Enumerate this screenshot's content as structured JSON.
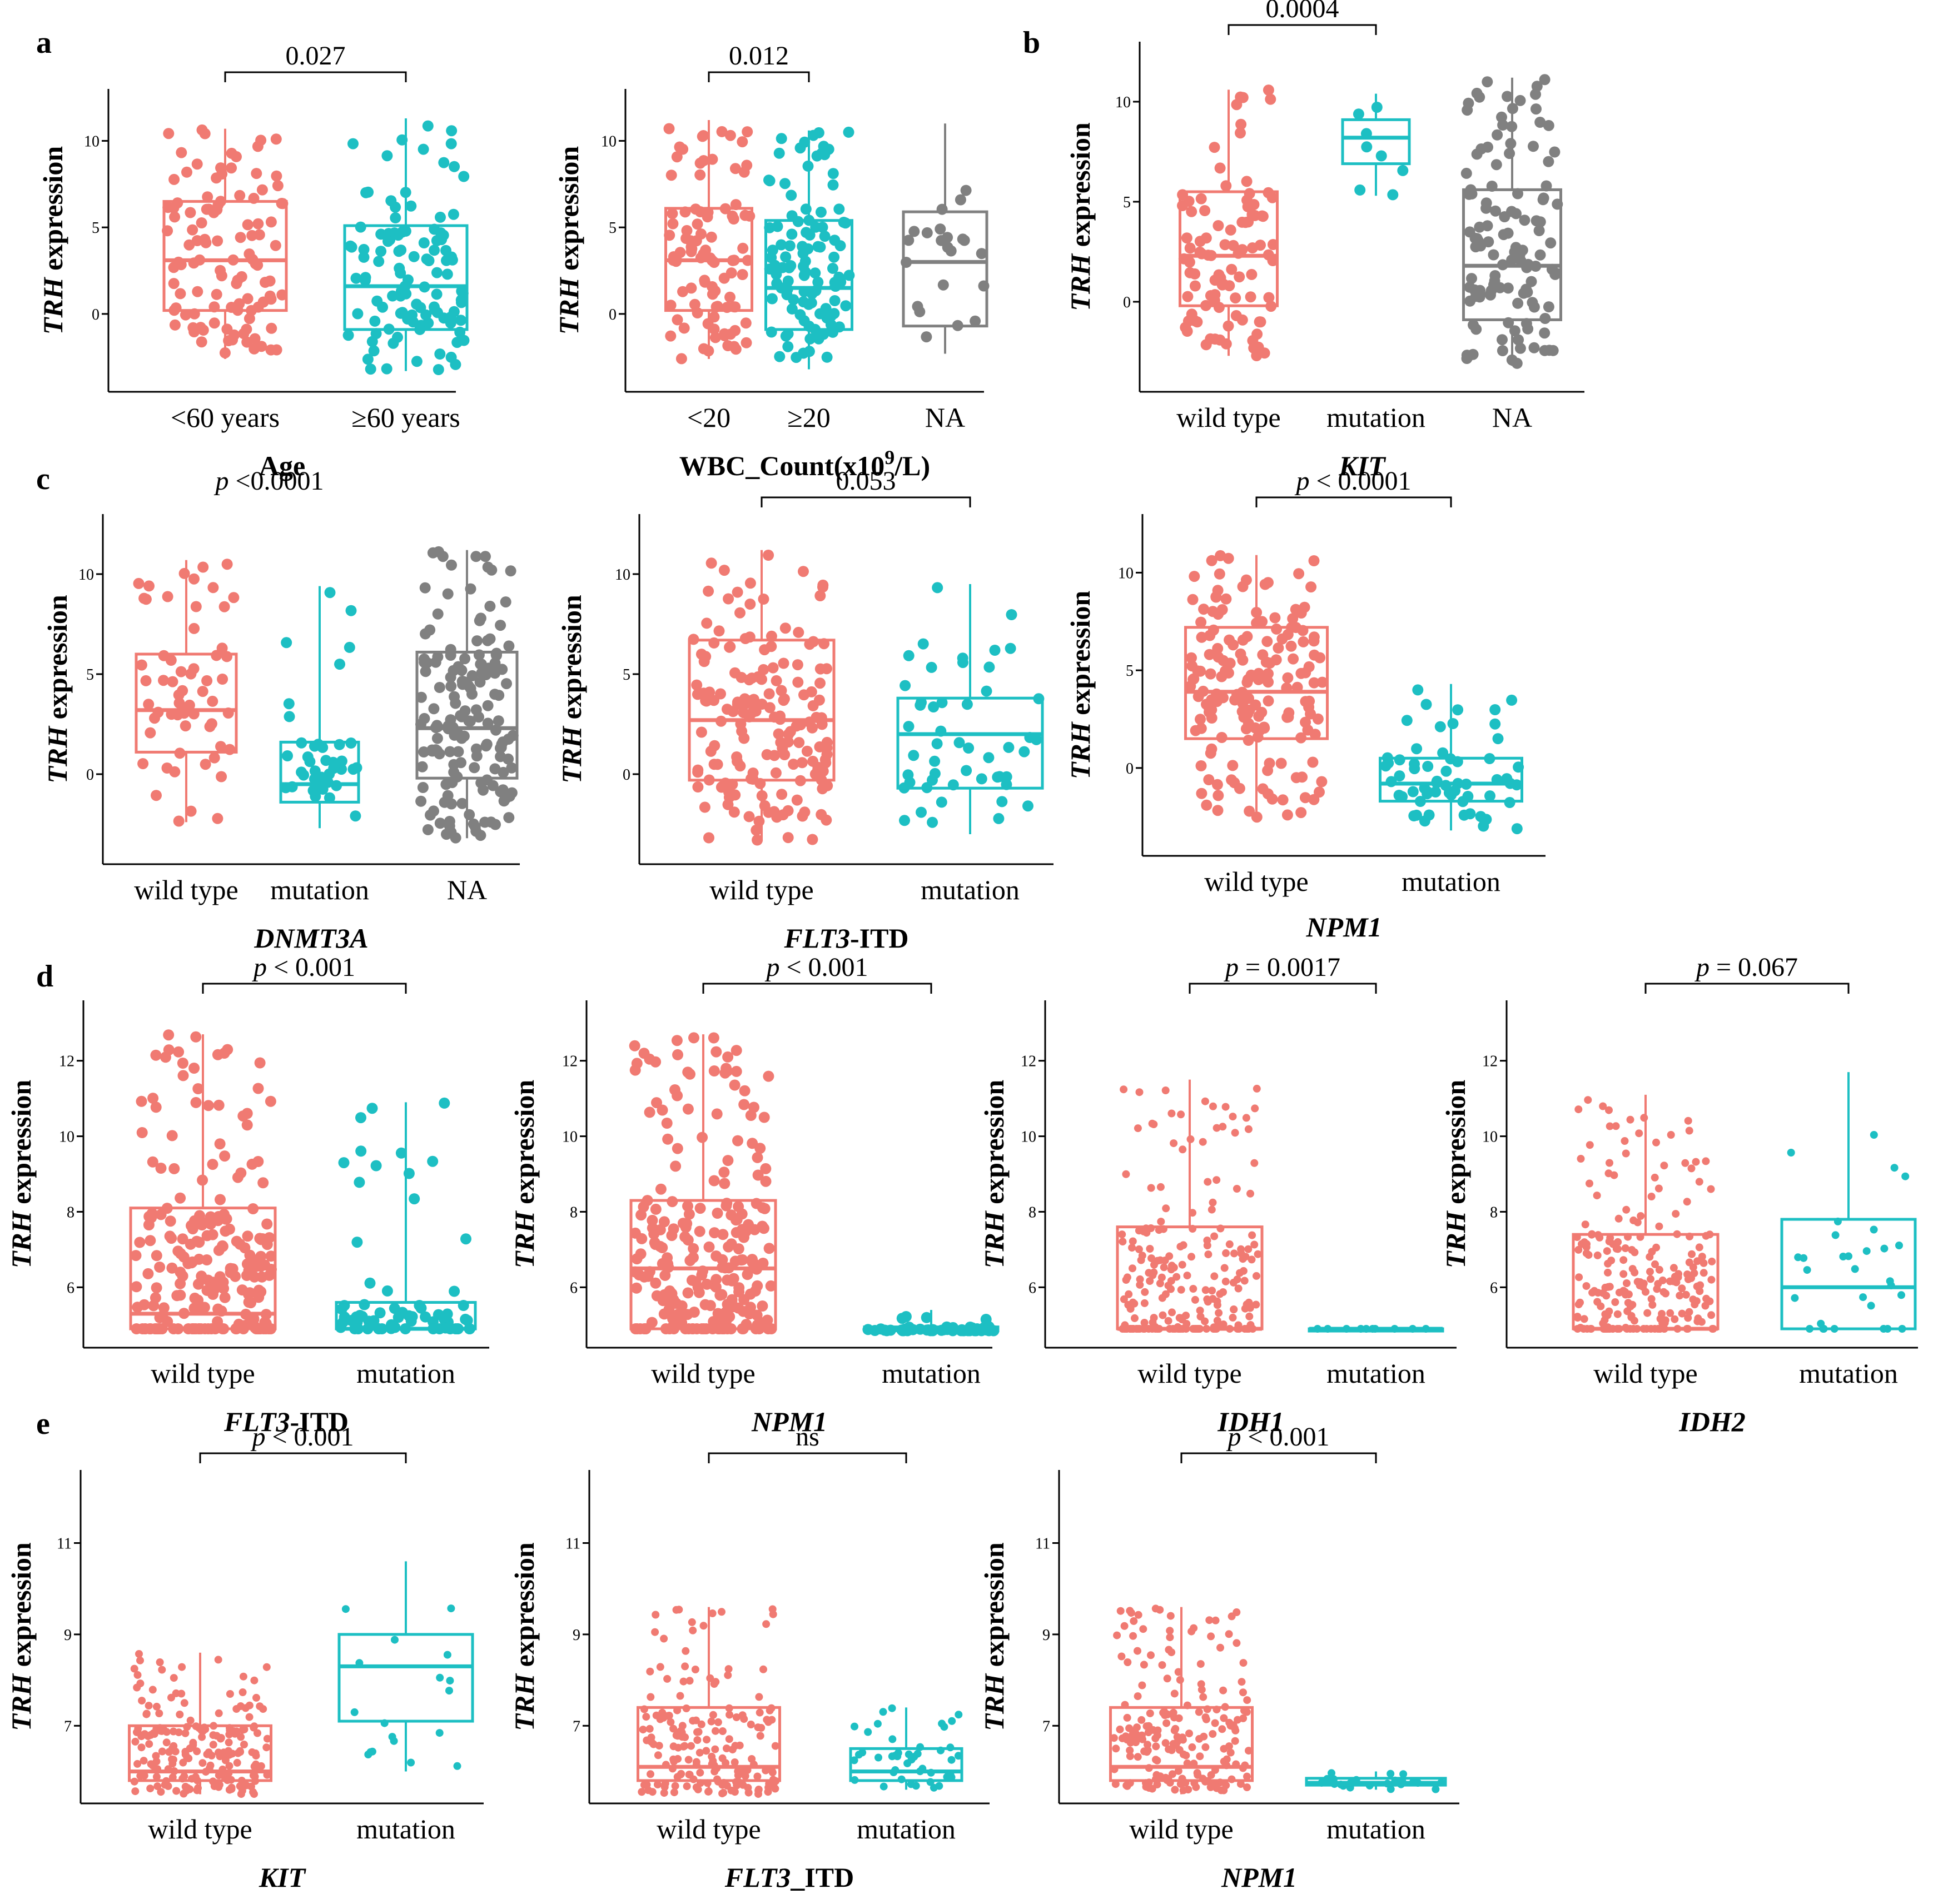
{
  "figure_letters": [
    "a",
    "b",
    "c",
    "d",
    "e"
  ],
  "colors": {
    "wild": "#f07a72",
    "mut": "#1dbfc3",
    "na": "#808080",
    "axis": "#000000"
  },
  "chart_data": [
    {
      "id": "a1",
      "type": "box_jitter",
      "letter": "a",
      "ylabel_gene": "TRH",
      "ylabel_rest": " expression",
      "xlabel": [
        {
          "t": "Age",
          "b": true,
          "i": false
        }
      ],
      "categories": [
        "<60 years",
        "≥60 years"
      ],
      "colors": [
        "wild",
        "mut"
      ],
      "boxes": [
        {
          "q1": 0.2,
          "med": 3.1,
          "q3": 6.5,
          "wmin": -2.6,
          "wmax": 10.7
        },
        {
          "q1": -0.9,
          "med": 1.6,
          "q3": 5.1,
          "wmin": -3.3,
          "wmax": 11.3
        }
      ],
      "n": [
        110,
        110
      ],
      "dotr": 10,
      "ylim": [
        -4.5,
        13
      ],
      "yticks": [
        0,
        5,
        10
      ],
      "sig": {
        "text": "0.027",
        "p": false,
        "pair": [
          0,
          1
        ]
      }
    },
    {
      "id": "a2",
      "type": "box_jitter",
      "letter": "",
      "ylabel_gene": "TRH",
      "ylabel_rest": " expression",
      "xlabel": [
        {
          "t": "WBC_Count(x10",
          "b": true,
          "i": false
        },
        {
          "t": "9",
          "b": true,
          "i": false,
          "sup": true
        },
        {
          "t": "/L)",
          "b": true,
          "i": false
        }
      ],
      "categories": [
        "<20",
        "≥20",
        "NA"
      ],
      "colors": [
        "wild",
        "mut",
        "na"
      ],
      "boxes": [
        {
          "q1": 0.2,
          "med": 3.1,
          "q3": 6.1,
          "wmin": -2.6,
          "wmax": 11.2
        },
        {
          "q1": -0.9,
          "med": 1.5,
          "q3": 5.4,
          "wmin": -3.2,
          "wmax": 10.6
        },
        {
          "q1": -0.7,
          "med": 3.0,
          "q3": 5.9,
          "wmin": -2.3,
          "wmax": 11.0
        }
      ],
      "n": [
        95,
        110,
        22
      ],
      "dotr": 10,
      "ylim": [
        -4.5,
        13
      ],
      "yticks": [
        0,
        5,
        10
      ],
      "sig": {
        "text": "0.012",
        "p": false,
        "pair": [
          0,
          1
        ]
      }
    },
    {
      "id": "b1",
      "type": "box_jitter",
      "letter": "b",
      "ylabel_gene": "TRH",
      "ylabel_rest": " expression",
      "xlabel": [
        {
          "t": "KIT",
          "b": true,
          "i": true
        }
      ],
      "categories": [
        "wild type",
        "mutation",
        "NA"
      ],
      "colors": [
        "wild",
        "mut",
        "na"
      ],
      "boxes": [
        {
          "q1": -0.2,
          "med": 2.3,
          "q3": 5.5,
          "wmin": -2.7,
          "wmax": 10.6
        },
        {
          "q1": 6.9,
          "med": 8.2,
          "q3": 9.1,
          "wmin": 5.3,
          "wmax": 10.4
        },
        {
          "q1": -0.9,
          "med": 1.8,
          "q3": 5.6,
          "wmin": -3.2,
          "wmax": 11.2
        }
      ],
      "n": [
        95,
        8,
        120
      ],
      "dotr": 10,
      "ylim": [
        -4.5,
        13
      ],
      "yticks": [
        0,
        5,
        10
      ],
      "sig": {
        "text": "0.0004",
        "p": false,
        "pair": [
          0,
          1
        ]
      }
    },
    {
      "id": "c1",
      "type": "box_jitter",
      "letter": "c",
      "ylabel_gene": "TRH",
      "ylabel_rest": " expression",
      "xlabel": [
        {
          "t": "DNMT3A",
          "b": true,
          "i": true
        }
      ],
      "categories": [
        "wild type",
        "mutation",
        "NA"
      ],
      "colors": [
        "wild",
        "mut",
        "na"
      ],
      "boxes": [
        {
          "q1": 1.1,
          "med": 3.2,
          "q3": 6.0,
          "wmin": -2.4,
          "wmax": 10.7
        },
        {
          "q1": -1.4,
          "med": -0.5,
          "q3": 1.6,
          "wmin": -2.7,
          "wmax": 9.4
        },
        {
          "q1": -0.2,
          "med": 2.3,
          "q3": 6.1,
          "wmin": -3.2,
          "wmax": 11.2
        }
      ],
      "n": [
        60,
        40,
        160
      ],
      "dotr": 10,
      "ylim": [
        -4.5,
        13
      ],
      "yticks": [
        0,
        5,
        10
      ],
      "sig": {
        "text": "<0.0001",
        "p": true,
        "pair": null
      }
    },
    {
      "id": "c2",
      "type": "box_jitter",
      "letter": "",
      "ylabel_gene": "TRH",
      "ylabel_rest": " expression",
      "xlabel": [
        {
          "t": "FLT3",
          "b": true,
          "i": true
        },
        {
          "t": "-ITD",
          "b": true,
          "i": false
        }
      ],
      "categories": [
        "wild type",
        "mutation"
      ],
      "colors": [
        "wild",
        "mut"
      ],
      "boxes": [
        {
          "q1": -0.3,
          "med": 2.7,
          "q3": 6.7,
          "wmin": -3.3,
          "wmax": 11.2
        },
        {
          "q1": -0.7,
          "med": 2.0,
          "q3": 3.8,
          "wmin": -3.0,
          "wmax": 9.5
        }
      ],
      "n": [
        170,
        50
      ],
      "dotr": 10,
      "ylim": [
        -4.5,
        13
      ],
      "yticks": [
        0,
        5,
        10
      ],
      "sig": {
        "text": "0.053",
        "p": false,
        "pair": [
          0,
          1
        ]
      }
    },
    {
      "id": "c3",
      "type": "box_jitter",
      "letter": "",
      "ylabel_gene": "TRH",
      "ylabel_rest": " expression",
      "xlabel": [
        {
          "t": "NPM1",
          "b": true,
          "i": true
        }
      ],
      "categories": [
        "wild type",
        "mutation"
      ],
      "colors": [
        "wild",
        "mut"
      ],
      "boxes": [
        {
          "q1": 1.5,
          "med": 3.9,
          "q3": 7.2,
          "wmin": -2.6,
          "wmax": 10.9
        },
        {
          "q1": -1.7,
          "med": -0.8,
          "q3": 0.5,
          "wmin": -3.2,
          "wmax": 4.3
        }
      ],
      "n": [
        175,
        60
      ],
      "dotr": 10,
      "ylim": [
        -4.5,
        13
      ],
      "yticks": [
        0,
        5,
        10
      ],
      "sig": {
        "text": "< 0.0001",
        "p": true,
        "pair": [
          0,
          1
        ]
      }
    },
    {
      "id": "d1",
      "type": "box_jitter",
      "letter": "d",
      "ylabel_gene": "TRH",
      "ylabel_rest": " expression",
      "xlabel": [
        {
          "t": "FLT3",
          "b": true,
          "i": true
        },
        {
          "t": "-ITD",
          "b": true,
          "i": false
        }
      ],
      "categories": [
        "wild type",
        "mutation"
      ],
      "colors": [
        "wild",
        "mut"
      ],
      "boxes": [
        {
          "q1": 4.9,
          "med": 5.3,
          "q3": 8.1,
          "wmin": 4.9,
          "wmax": 12.7
        },
        {
          "q1": 4.9,
          "med": 4.9,
          "q3": 5.6,
          "wmin": 4.9,
          "wmax": 10.9
        }
      ],
      "n": [
        220,
        70
      ],
      "dotr": 10,
      "ylim": [
        4.4,
        13.6
      ],
      "yticks": [
        6,
        8,
        10,
        12
      ],
      "sig": {
        "text": "< 0.001",
        "p": true,
        "pair": [
          0,
          1
        ]
      }
    },
    {
      "id": "d2",
      "type": "box_jitter",
      "letter": "",
      "ylabel_gene": "TRH",
      "ylabel_rest": " expression",
      "xlabel": [
        {
          "t": "NPM1",
          "b": true,
          "i": true
        }
      ],
      "categories": [
        "wild type",
        "mutation"
      ],
      "colors": [
        "wild",
        "mut"
      ],
      "boxes": [
        {
          "q1": 4.9,
          "med": 6.5,
          "q3": 8.3,
          "wmin": 4.9,
          "wmax": 12.7
        },
        {
          "q1": 4.85,
          "med": 4.9,
          "q3": 4.95,
          "wmin": 4.85,
          "wmax": 5.4
        }
      ],
      "n": [
        230,
        50
      ],
      "dotr": 10,
      "ylim": [
        4.4,
        13.6
      ],
      "yticks": [
        6,
        8,
        10,
        12
      ],
      "sig": {
        "text": "< 0.001",
        "p": true,
        "pair": [
          0,
          1
        ]
      }
    },
    {
      "id": "d3",
      "type": "box_jitter",
      "letter": "",
      "ylabel_gene": "TRH",
      "ylabel_rest": " expression",
      "xlabel": [
        {
          "t": "IDH1",
          "b": true,
          "i": true
        }
      ],
      "categories": [
        "wild type",
        "mutation"
      ],
      "colors": [
        "wild",
        "mut"
      ],
      "boxes": [
        {
          "q1": 4.9,
          "med": 4.9,
          "q3": 7.6,
          "wmin": 4.9,
          "wmax": 11.5
        },
        {
          "q1": 4.9,
          "med": 4.9,
          "q3": 4.9,
          "wmin": 4.9,
          "wmax": 4.9
        }
      ],
      "n": [
        220,
        10
      ],
      "dotr": 7,
      "ylim": [
        4.4,
        13.6
      ],
      "yticks": [
        6,
        8,
        10,
        12
      ],
      "sig": {
        "text": "= 0.0017",
        "p": true,
        "pair": [
          0,
          1
        ]
      }
    },
    {
      "id": "d4",
      "type": "box_jitter",
      "letter": "",
      "ylabel_gene": "TRH",
      "ylabel_rest": " expression",
      "xlabel": [
        {
          "t": "IDH2",
          "b": true,
          "i": true
        }
      ],
      "categories": [
        "wild type",
        "mutation"
      ],
      "colors": [
        "wild",
        "mut"
      ],
      "boxes": [
        {
          "q1": 4.9,
          "med": 4.9,
          "q3": 7.4,
          "wmin": 4.9,
          "wmax": 11.1
        },
        {
          "q1": 4.9,
          "med": 6.0,
          "q3": 7.8,
          "wmin": 4.9,
          "wmax": 11.7
        }
      ],
      "n": [
        220,
        30
      ],
      "dotr": 7,
      "ylim": [
        4.4,
        13.6
      ],
      "yticks": [
        6,
        8,
        10,
        12
      ],
      "sig": {
        "text": "= 0.067",
        "p": true,
        "pair": [
          0,
          1
        ]
      }
    },
    {
      "id": "e1",
      "type": "box_jitter",
      "letter": "e",
      "ylabel_gene": "TRH",
      "ylabel_rest": " expression",
      "xlabel": [
        {
          "t": "KIT",
          "b": true,
          "i": true
        }
      ],
      "categories": [
        "wild type",
        "mutation"
      ],
      "colors": [
        "wild",
        "mut"
      ],
      "boxes": [
        {
          "q1": 5.8,
          "med": 6.0,
          "q3": 7.0,
          "wmin": 5.5,
          "wmax": 8.6
        },
        {
          "q1": 7.1,
          "med": 8.3,
          "q3": 9.0,
          "wmin": 6.0,
          "wmax": 10.6
        }
      ],
      "n": [
        200,
        18
      ],
      "dotr": 7,
      "ylim": [
        5.3,
        12.6
      ],
      "yticks": [
        7,
        9,
        11
      ],
      "sig": {
        "text": "< 0.001",
        "p": true,
        "pair": [
          0,
          1
        ]
      }
    },
    {
      "id": "e2",
      "type": "box_jitter",
      "letter": "",
      "ylabel_gene": "TRH",
      "ylabel_rest": " expression",
      "xlabel": [
        {
          "t": "FLT3",
          "b": true,
          "i": true
        },
        {
          "t": "_ITD",
          "b": true,
          "i": false
        }
      ],
      "categories": [
        "wild type",
        "mutation"
      ],
      "colors": [
        "wild",
        "mut"
      ],
      "boxes": [
        {
          "q1": 5.8,
          "med": 6.1,
          "q3": 7.4,
          "wmin": 5.5,
          "wmax": 9.6
        },
        {
          "q1": 5.8,
          "med": 6.0,
          "q3": 6.5,
          "wmin": 5.6,
          "wmax": 7.4
        }
      ],
      "n": [
        180,
        45
      ],
      "dotr": 7,
      "ylim": [
        5.3,
        12.6
      ],
      "yticks": [
        7,
        9,
        11
      ],
      "sig": {
        "text": "ns",
        "p": false,
        "pair": [
          0,
          1
        ]
      }
    },
    {
      "id": "e3",
      "type": "box_jitter",
      "letter": "",
      "ylabel_gene": "TRH",
      "ylabel_rest": " expression",
      "xlabel": [
        {
          "t": "NPM1",
          "b": true,
          "i": true
        }
      ],
      "categories": [
        "wild type",
        "mutation"
      ],
      "colors": [
        "wild",
        "mut"
      ],
      "boxes": [
        {
          "q1": 5.8,
          "med": 6.1,
          "q3": 7.4,
          "wmin": 5.5,
          "wmax": 9.6
        },
        {
          "q1": 5.7,
          "med": 5.75,
          "q3": 5.85,
          "wmin": 5.6,
          "wmax": 6.0
        }
      ],
      "n": [
        200,
        25
      ],
      "dotr": 7,
      "ylim": [
        5.3,
        12.6
      ],
      "yticks": [
        7,
        9,
        11
      ],
      "sig": {
        "text": "< 0.001",
        "p": true,
        "pair": [
          0,
          1
        ]
      }
    }
  ]
}
